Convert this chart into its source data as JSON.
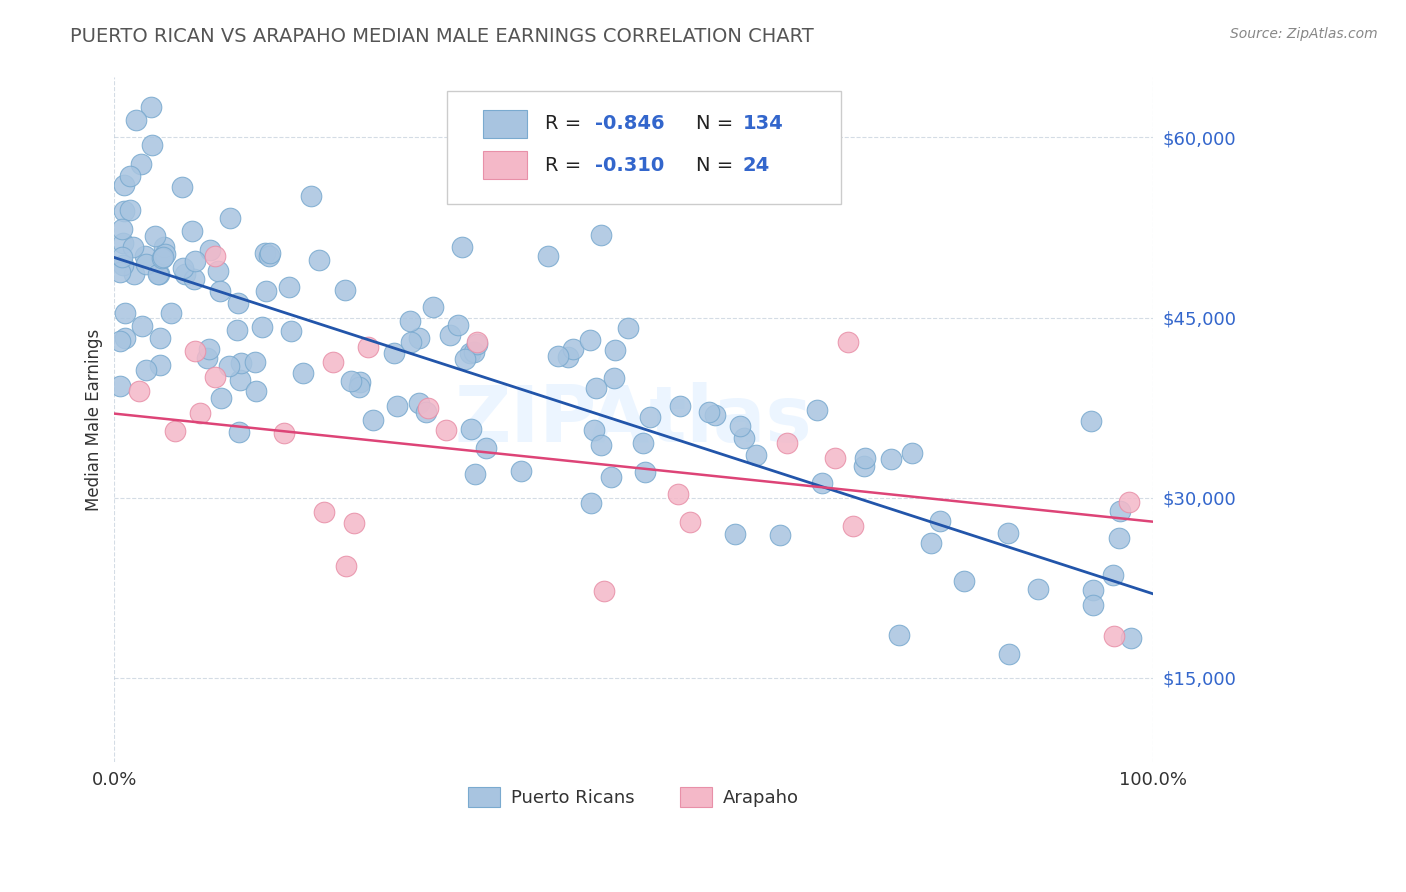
{
  "title": "PUERTO RICAN VS ARAPAHO MEDIAN MALE EARNINGS CORRELATION CHART",
  "source_text": "Source: ZipAtlas.com",
  "ylabel": "Median Male Earnings",
  "xlim": [
    0.0,
    100.0
  ],
  "ylim": [
    8000,
    65000
  ],
  "yticks": [
    15000,
    30000,
    45000,
    60000
  ],
  "ytick_labels": [
    "$15,000",
    "$30,000",
    "$45,000",
    "$60,000"
  ],
  "xtick_labels": [
    "0.0%",
    "100.0%"
  ],
  "blue_color": "#a8c4e0",
  "blue_edge": "#7aaacf",
  "pink_color": "#f4b8c8",
  "pink_edge": "#e890a8",
  "line_blue": "#2255aa",
  "line_pink": "#dd4477",
  "value_color": "#3366cc",
  "title_color": "#555555",
  "ytick_color": "#3366cc",
  "watermark": "ZIPAtlas",
  "blue_n": 134,
  "pink_n": 24,
  "blue_intercept": 50000,
  "blue_slope": -280,
  "pink_intercept": 37000,
  "pink_slope": -90,
  "blue_seed": 42,
  "pink_seed": 13
}
